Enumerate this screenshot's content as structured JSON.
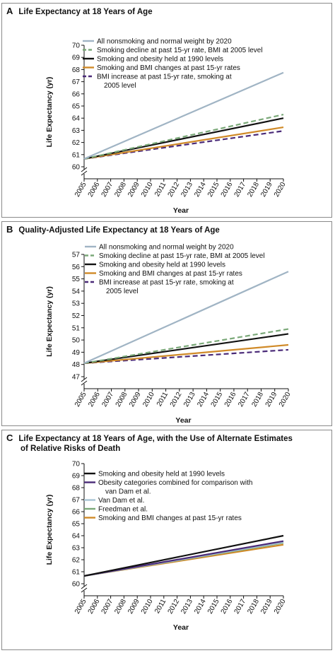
{
  "chart_data": [
    {
      "panel_letter": "A",
      "title": "Life Expectancy at 18 Years of Age",
      "subtitle": "",
      "type": "line",
      "xlabel": "Year",
      "ylabel": "Life Expectancy (yr)",
      "xlim": [
        2005,
        2020
      ],
      "ylim": [
        60,
        70
      ],
      "y_axis_break": true,
      "x": [
        2005,
        2020
      ],
      "xticks": [
        "2005",
        "2006",
        "2007",
        "2008",
        "2009",
        "2010",
        "2011",
        "2012",
        "2013",
        "2014",
        "2015",
        "2016",
        "2017",
        "2018",
        "2019",
        "2020"
      ],
      "yticks": [
        "60",
        "61",
        "62",
        "63",
        "64",
        "65",
        "66",
        "67",
        "68",
        "69",
        "70"
      ],
      "grid": false,
      "legend_position": "top-left",
      "series": [
        {
          "name": "All nonsmoking and normal weight by 2020",
          "name2": "",
          "color": "#a0b4c4",
          "style": "solid",
          "values": [
            60.65,
            67.75
          ]
        },
        {
          "name": "Smoking decline at past 15-yr rate, BMI at 2005 level",
          "name2": "",
          "color": "#7aa878",
          "style": "dashed",
          "values": [
            60.65,
            64.3
          ]
        },
        {
          "name": "Smoking and obesity held at 1990 levels",
          "name2": "",
          "color": "#111111",
          "style": "solid",
          "values": [
            60.65,
            64.0
          ]
        },
        {
          "name": "Smoking and BMI changes at past 15-yr rates",
          "name2": "",
          "color": "#d08a28",
          "style": "solid",
          "values": [
            60.65,
            63.25
          ]
        },
        {
          "name": "BMI increase at past 15-yr rate, smoking at",
          "name2": "2005 level",
          "color": "#4a2a78",
          "style": "dashed",
          "values": [
            60.65,
            62.95
          ]
        }
      ]
    },
    {
      "panel_letter": "B",
      "title": "Quality-Adjusted Life Expectancy at 18 Years of Age",
      "subtitle": "",
      "type": "line",
      "xlabel": "Year",
      "ylabel": "Life Expectancy (yr)",
      "xlim": [
        2005,
        2020
      ],
      "ylim": [
        47,
        57
      ],
      "y_axis_break": true,
      "x": [
        2005,
        2020
      ],
      "xticks": [
        "2005",
        "2006",
        "2007",
        "2008",
        "2009",
        "2010",
        "2011",
        "2012",
        "2013",
        "2014",
        "2015",
        "2016",
        "2017",
        "2018",
        "2019",
        "2020"
      ],
      "yticks": [
        "47",
        "48",
        "49",
        "50",
        "51",
        "52",
        "53",
        "54",
        "55",
        "56",
        "57"
      ],
      "grid": false,
      "legend_position": "top-left",
      "series": [
        {
          "name": "All nonsmoking and normal weight by 2020",
          "name2": "",
          "color": "#a0b4c4",
          "style": "solid",
          "values": [
            48.1,
            55.6
          ]
        },
        {
          "name": "Smoking decline at past 15-yr rate, BMI at 2005 level",
          "name2": "",
          "color": "#7aa878",
          "style": "dashed",
          "values": [
            48.1,
            50.9
          ]
        },
        {
          "name": "Smoking and obesity held at 1990 levels",
          "name2": "",
          "color": "#111111",
          "style": "solid",
          "values": [
            48.1,
            50.5
          ]
        },
        {
          "name": "Smoking and BMI changes at past 15-yr rates",
          "name2": "",
          "color": "#d08a28",
          "style": "solid",
          "values": [
            48.1,
            49.6
          ]
        },
        {
          "name": "BMI increase at past 15-yr rate, smoking at",
          "name2": "2005 level",
          "color": "#4a2a78",
          "style": "dashed",
          "values": [
            48.1,
            49.2
          ]
        }
      ]
    },
    {
      "panel_letter": "C",
      "title": "Life Expectancy at 18 Years of Age, with the Use of Alternate Estimates",
      "subtitle": "of Relative Risks of Death",
      "type": "line",
      "xlabel": "Year",
      "ylabel": "Life Expectancy (yr)",
      "xlim": [
        2005,
        2020
      ],
      "ylim": [
        60,
        70
      ],
      "y_axis_break": true,
      "x": [
        2005,
        2020
      ],
      "xticks": [
        "2005",
        "2006",
        "2007",
        "2008",
        "2009",
        "2010",
        "2011",
        "2012",
        "2013",
        "2014",
        "2015",
        "2016",
        "2017",
        "2018",
        "2019",
        "2020"
      ],
      "yticks": [
        "60",
        "61",
        "62",
        "63",
        "64",
        "65",
        "66",
        "67",
        "68",
        "69",
        "70"
      ],
      "grid": false,
      "legend_position": "top-left",
      "series": [
        {
          "name": "Smoking and obesity held at 1990 levels",
          "name2": "",
          "color": "#111111",
          "style": "solid",
          "values": [
            60.65,
            64.0
          ]
        },
        {
          "name": "Obesity categories combined for comparison with",
          "name2": "van Dam et al.",
          "color": "#4a2a78",
          "style": "solid",
          "values": [
            60.65,
            63.55
          ]
        },
        {
          "name": "Van Dam et al.",
          "name2": "",
          "color": "#a8c4d4",
          "style": "solid",
          "values": [
            60.65,
            63.45
          ]
        },
        {
          "name": "Freedman et al.",
          "name2": "",
          "color": "#7aa878",
          "style": "solid",
          "values": [
            60.65,
            63.4
          ]
        },
        {
          "name": "Smoking and BMI changes at past 15-yr rates",
          "name2": "",
          "color": "#d08a28",
          "style": "solid",
          "values": [
            60.65,
            63.25
          ]
        }
      ]
    }
  ]
}
